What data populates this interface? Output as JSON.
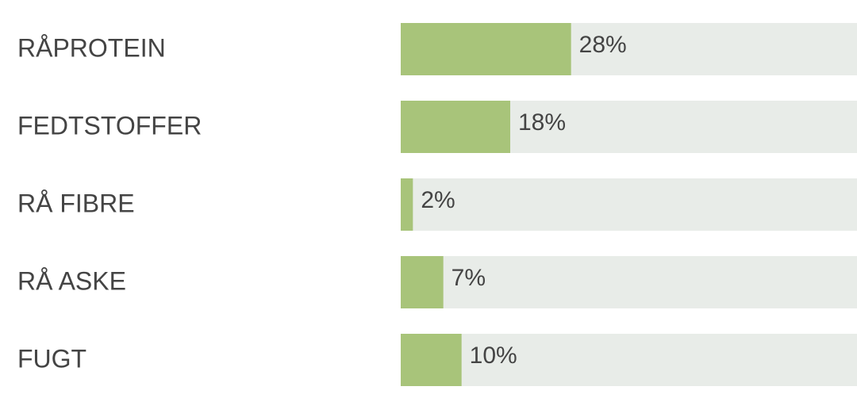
{
  "chart_data": {
    "type": "bar",
    "orientation": "horizontal",
    "categories": [
      "RÅPROTEIN",
      "FEDTSTOFFER",
      "RÅ FIBRE",
      "RÅ ASKE",
      "FUGT"
    ],
    "values": [
      28,
      18,
      2,
      7,
      10
    ],
    "value_labels": [
      "28%",
      "18%",
      "2%",
      "7%",
      "10%"
    ],
    "color": "#a8c47a",
    "track_color": "#e8ece8",
    "xlim": [
      0,
      75
    ]
  }
}
